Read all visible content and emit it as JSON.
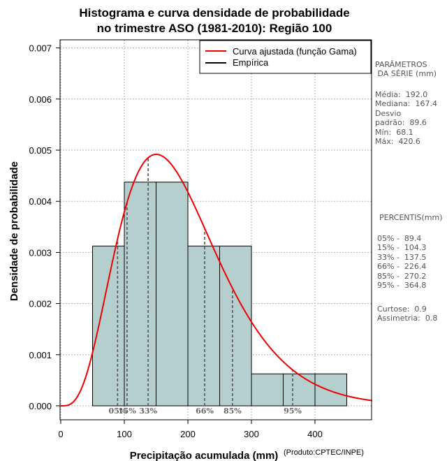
{
  "chart_data": {
    "type": "bar",
    "title": [
      "Histograma e curva densidade de probabilidade",
      "no trimestre ASO (1981-2010): Região 100"
    ],
    "xlabel": "Precipitação acumulada (mm)",
    "ylabel": "Densidade de probabilidade",
    "xlim": [
      0,
      490
    ],
    "ylim": [
      0,
      0.0072
    ],
    "xticks": [
      0,
      100,
      200,
      300,
      400
    ],
    "yticks": [
      0.0,
      0.001,
      0.002,
      0.003,
      0.004,
      0.005,
      0.006,
      0.007
    ],
    "ytick_labels": [
      "0.000",
      "0.001",
      "0.002",
      "0.003",
      "0.004",
      "0.005",
      "0.006",
      "0.007"
    ],
    "grid": true,
    "bins": [
      {
        "from": 50,
        "to": 100,
        "density": 0.003125
      },
      {
        "from": 100,
        "to": 150,
        "density": 0.004375
      },
      {
        "from": 150,
        "to": 200,
        "density": 0.004375
      },
      {
        "from": 200,
        "to": 250,
        "density": 0.003125
      },
      {
        "from": 250,
        "to": 300,
        "density": 0.003125
      },
      {
        "from": 300,
        "to": 350,
        "density": 0.000625
      },
      {
        "from": 350,
        "to": 400,
        "density": 0.000625
      },
      {
        "from": 400,
        "to": 450,
        "density": 0.000625
      }
    ],
    "bar_color": "#b5cfcf",
    "fitted_curve": {
      "name": "Curva ajustada (função Gama)",
      "color": "#ee0000",
      "shape": 4.59,
      "scale": 41.83,
      "x_max": 490
    },
    "empirical": {
      "name": "Empírica",
      "color": "#000000"
    },
    "percentiles": [
      {
        "label": "05%",
        "value": 89.4
      },
      {
        "label": "15%",
        "value": 104.3
      },
      {
        "label": "33%",
        "value": 137.5
      },
      {
        "label": "66%",
        "value": 226.4
      },
      {
        "label": "85%",
        "value": 270.2
      },
      {
        "label": "95%",
        "value": 364.8
      }
    ],
    "legend_position": "top-right"
  },
  "side_panel": {
    "params_title": "PARÂMETROS\n DA SÉRIE (mm)",
    "params_text": "Média:  192.0\nMediana:  167.4\nDesvio\npadrão:  89.6\nMín:  68.1\nMáx:  420.6",
    "percentis_title": "PERCENTIS(mm)",
    "percentis_text": "05% -  89.4\n15% -  104.3\n33% -  137.5\n66% -  226.4\n85% -  270.2\n95% -  364.8",
    "shape_text": "Curtose:  0.9\nAssimetria:  0.8"
  },
  "credit": "(Produto:CPTEC/INPE)"
}
